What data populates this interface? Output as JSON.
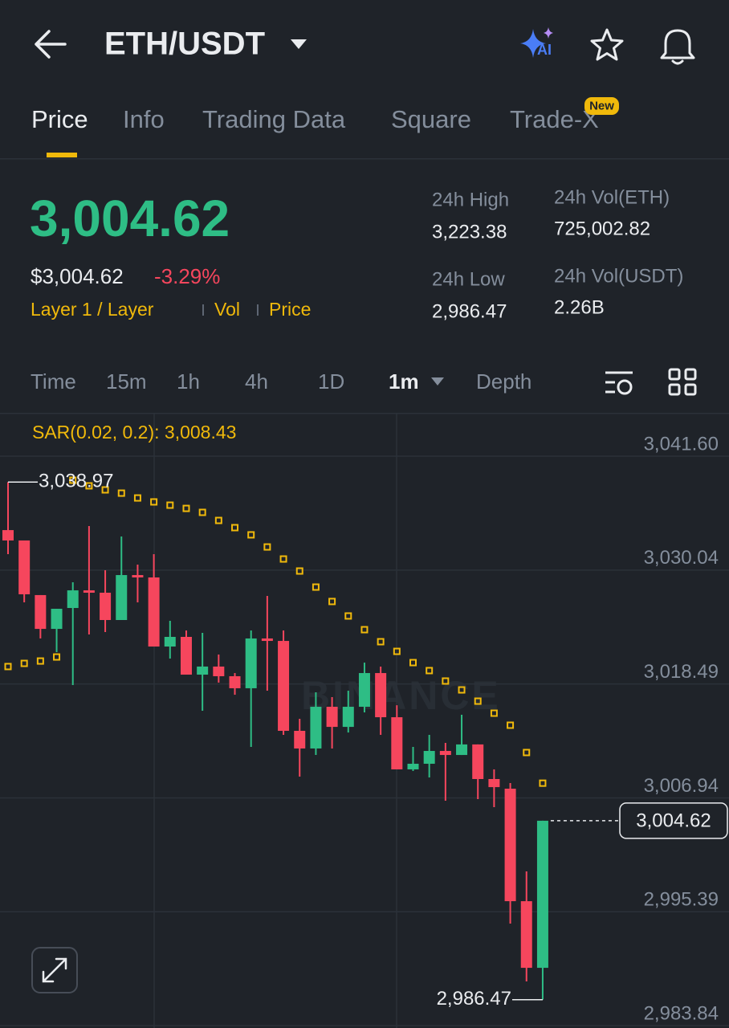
{
  "header": {
    "title": "ETH/USDT",
    "ai_label": "AI"
  },
  "tabs": [
    "Price",
    "Info",
    "Trading Data",
    "Square",
    "Trade-X"
  ],
  "tab_badge": "New",
  "ticker": {
    "price": "3,004.62",
    "usd_price": "$3,004.62",
    "change": "-3.29%",
    "tags": [
      "Layer 1 / Layer",
      "Vol",
      "Price"
    ],
    "stats": [
      {
        "label": "24h High",
        "value": "3,223.38"
      },
      {
        "label": "24h Low",
        "value": "2,986.47"
      },
      {
        "label": "24h Vol(ETH)",
        "value": "725,002.82"
      },
      {
        "label": "24h Vol(USDT)",
        "value": "2.26B"
      }
    ]
  },
  "intervals": [
    "Time",
    "15m",
    "1h",
    "4h",
    "1D",
    "1m",
    "Depth"
  ],
  "chart_data": {
    "type": "candlestick",
    "watermark": "BINANCE",
    "up_color": "#2ebd85",
    "down_color": "#f6465d",
    "open": [
      3034.1,
      3033.05,
      3027.51,
      3024.08,
      3026.2,
      3027.99,
      3027.75,
      3024.98,
      3029.54,
      3029.3,
      3022.29,
      3023.27,
      3019.44,
      3020.26,
      3019.28,
      3018.06,
      3023.11,
      3022.86,
      3013.74,
      3011.95,
      3016.18,
      3014.14,
      3016.18,
      3019.6,
      3015.12,
      3009.83,
      3010.4,
      3011.7,
      3011.29,
      3012.36,
      3008.85,
      3007.87,
      2996.46,
      2989.7
    ],
    "high": [
      3038.97,
      3033.05,
      3027.51,
      3026.12,
      3028.81,
      3034.51,
      3030.03,
      3033.45,
      3030.6,
      3031.66,
      3024.9,
      3023.92,
      3023.68,
      3021.48,
      3019.6,
      3023.92,
      3027.42,
      3023.92,
      3014.96,
      3017.65,
      3017.16,
      3017.81,
      3020.66,
      3020.26,
      3016.34,
      3012.11,
      3013.33,
      3012.52,
      3015.37,
      3012.36,
      3009.83,
      3008.44,
      2999.48,
      3004.62
    ],
    "low": [
      3031.66,
      3026.77,
      3023.11,
      3021.72,
      3018.38,
      3023.51,
      3023.76,
      3024.98,
      3026.77,
      3022.29,
      3021.07,
      3019.44,
      3015.77,
      3018.63,
      3017.4,
      3012.11,
      3017.81,
      3013.33,
      3009.09,
      3011.29,
      3011.95,
      3013.57,
      3015.61,
      3013.33,
      3009.83,
      3009.67,
      3009.01,
      3006.65,
      3011.29,
      3006.81,
      3006.0,
      2994.19,
      2988.32,
      2986.47
    ],
    "close": [
      3033.05,
      3027.59,
      3024.08,
      3026.12,
      3027.99,
      3027.75,
      3024.98,
      3029.54,
      3029.3,
      3022.29,
      3023.27,
      3019.44,
      3020.26,
      3019.28,
      3018.06,
      3023.11,
      3022.86,
      3013.74,
      3011.95,
      3016.18,
      3014.14,
      3016.18,
      3019.6,
      3015.12,
      3009.83,
      3010.4,
      3011.7,
      3011.29,
      3012.36,
      3008.85,
      3008.03,
      2996.46,
      2989.7,
      3004.62
    ],
    "sar": {
      "label": "SAR(0.02, 0.2): 3,008.43",
      "color": "#f0b90b",
      "values": [
        3020.26,
        3020.58,
        3020.82,
        3021.23,
        3039.16,
        3038.59,
        3038.18,
        3037.85,
        3037.36,
        3036.96,
        3036.63,
        3036.3,
        3035.9,
        3035.08,
        3034.35,
        3033.62,
        3032.39,
        3031.17,
        3029.95,
        3028.32,
        3026.86,
        3025.39,
        3024.0,
        3022.78,
        3021.8,
        3020.66,
        3019.85,
        3018.79,
        3017.89,
        3016.75,
        3015.53,
        3014.31,
        3011.54,
        3008.43
      ]
    },
    "high_marker": {
      "value": 3038.97,
      "label": "3,038.97"
    },
    "low_marker": {
      "value": 2986.47,
      "label": "2,986.47"
    },
    "current_price": {
      "value": 3004.62,
      "label": "3,004.62"
    },
    "ylim": [
      2983.84,
      3041.6
    ],
    "yticks": [
      {
        "value": 3041.6,
        "label": "3,041.60"
      },
      {
        "value": 3030.04,
        "label": "3,030.04"
      },
      {
        "value": 3018.49,
        "label": "3,018.49"
      },
      {
        "value": 3006.94,
        "label": "3,006.94"
      },
      {
        "value": 2995.39,
        "label": "2,995.39"
      },
      {
        "value": 2983.84,
        "label": "2,983.84"
      }
    ],
    "grid": true
  }
}
